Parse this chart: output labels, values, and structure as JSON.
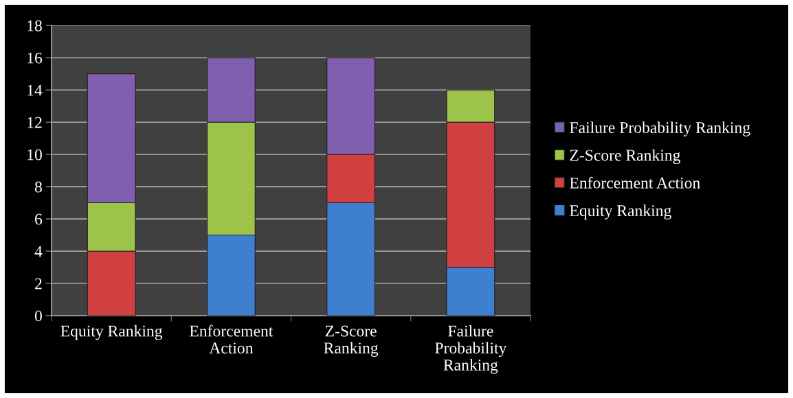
{
  "chart_data": {
    "type": "bar",
    "stacked": true,
    "categories": [
      "Equity Ranking",
      "Enforcement\nAction",
      "Z-Score\nRanking",
      "Failure\nProbability\nRanking"
    ],
    "series": [
      {
        "name": "Equity Ranking",
        "color": "#3f7fcf",
        "values": [
          0,
          5,
          7,
          3
        ]
      },
      {
        "name": "Enforcement Action",
        "color": "#d04040",
        "values": [
          4,
          0,
          3,
          9
        ]
      },
      {
        "name": "Z-Score Ranking",
        "color": "#9dc34a",
        "values": [
          3,
          7,
          0,
          2
        ]
      },
      {
        "name": "Failure Probability Ranking",
        "color": "#7f5fae",
        "values": [
          8,
          4,
          6,
          0
        ]
      }
    ],
    "ylim": [
      0,
      18
    ],
    "yticks": [
      0,
      2,
      4,
      6,
      8,
      10,
      12,
      14,
      16,
      18
    ],
    "grid": "y",
    "legend": "right"
  }
}
